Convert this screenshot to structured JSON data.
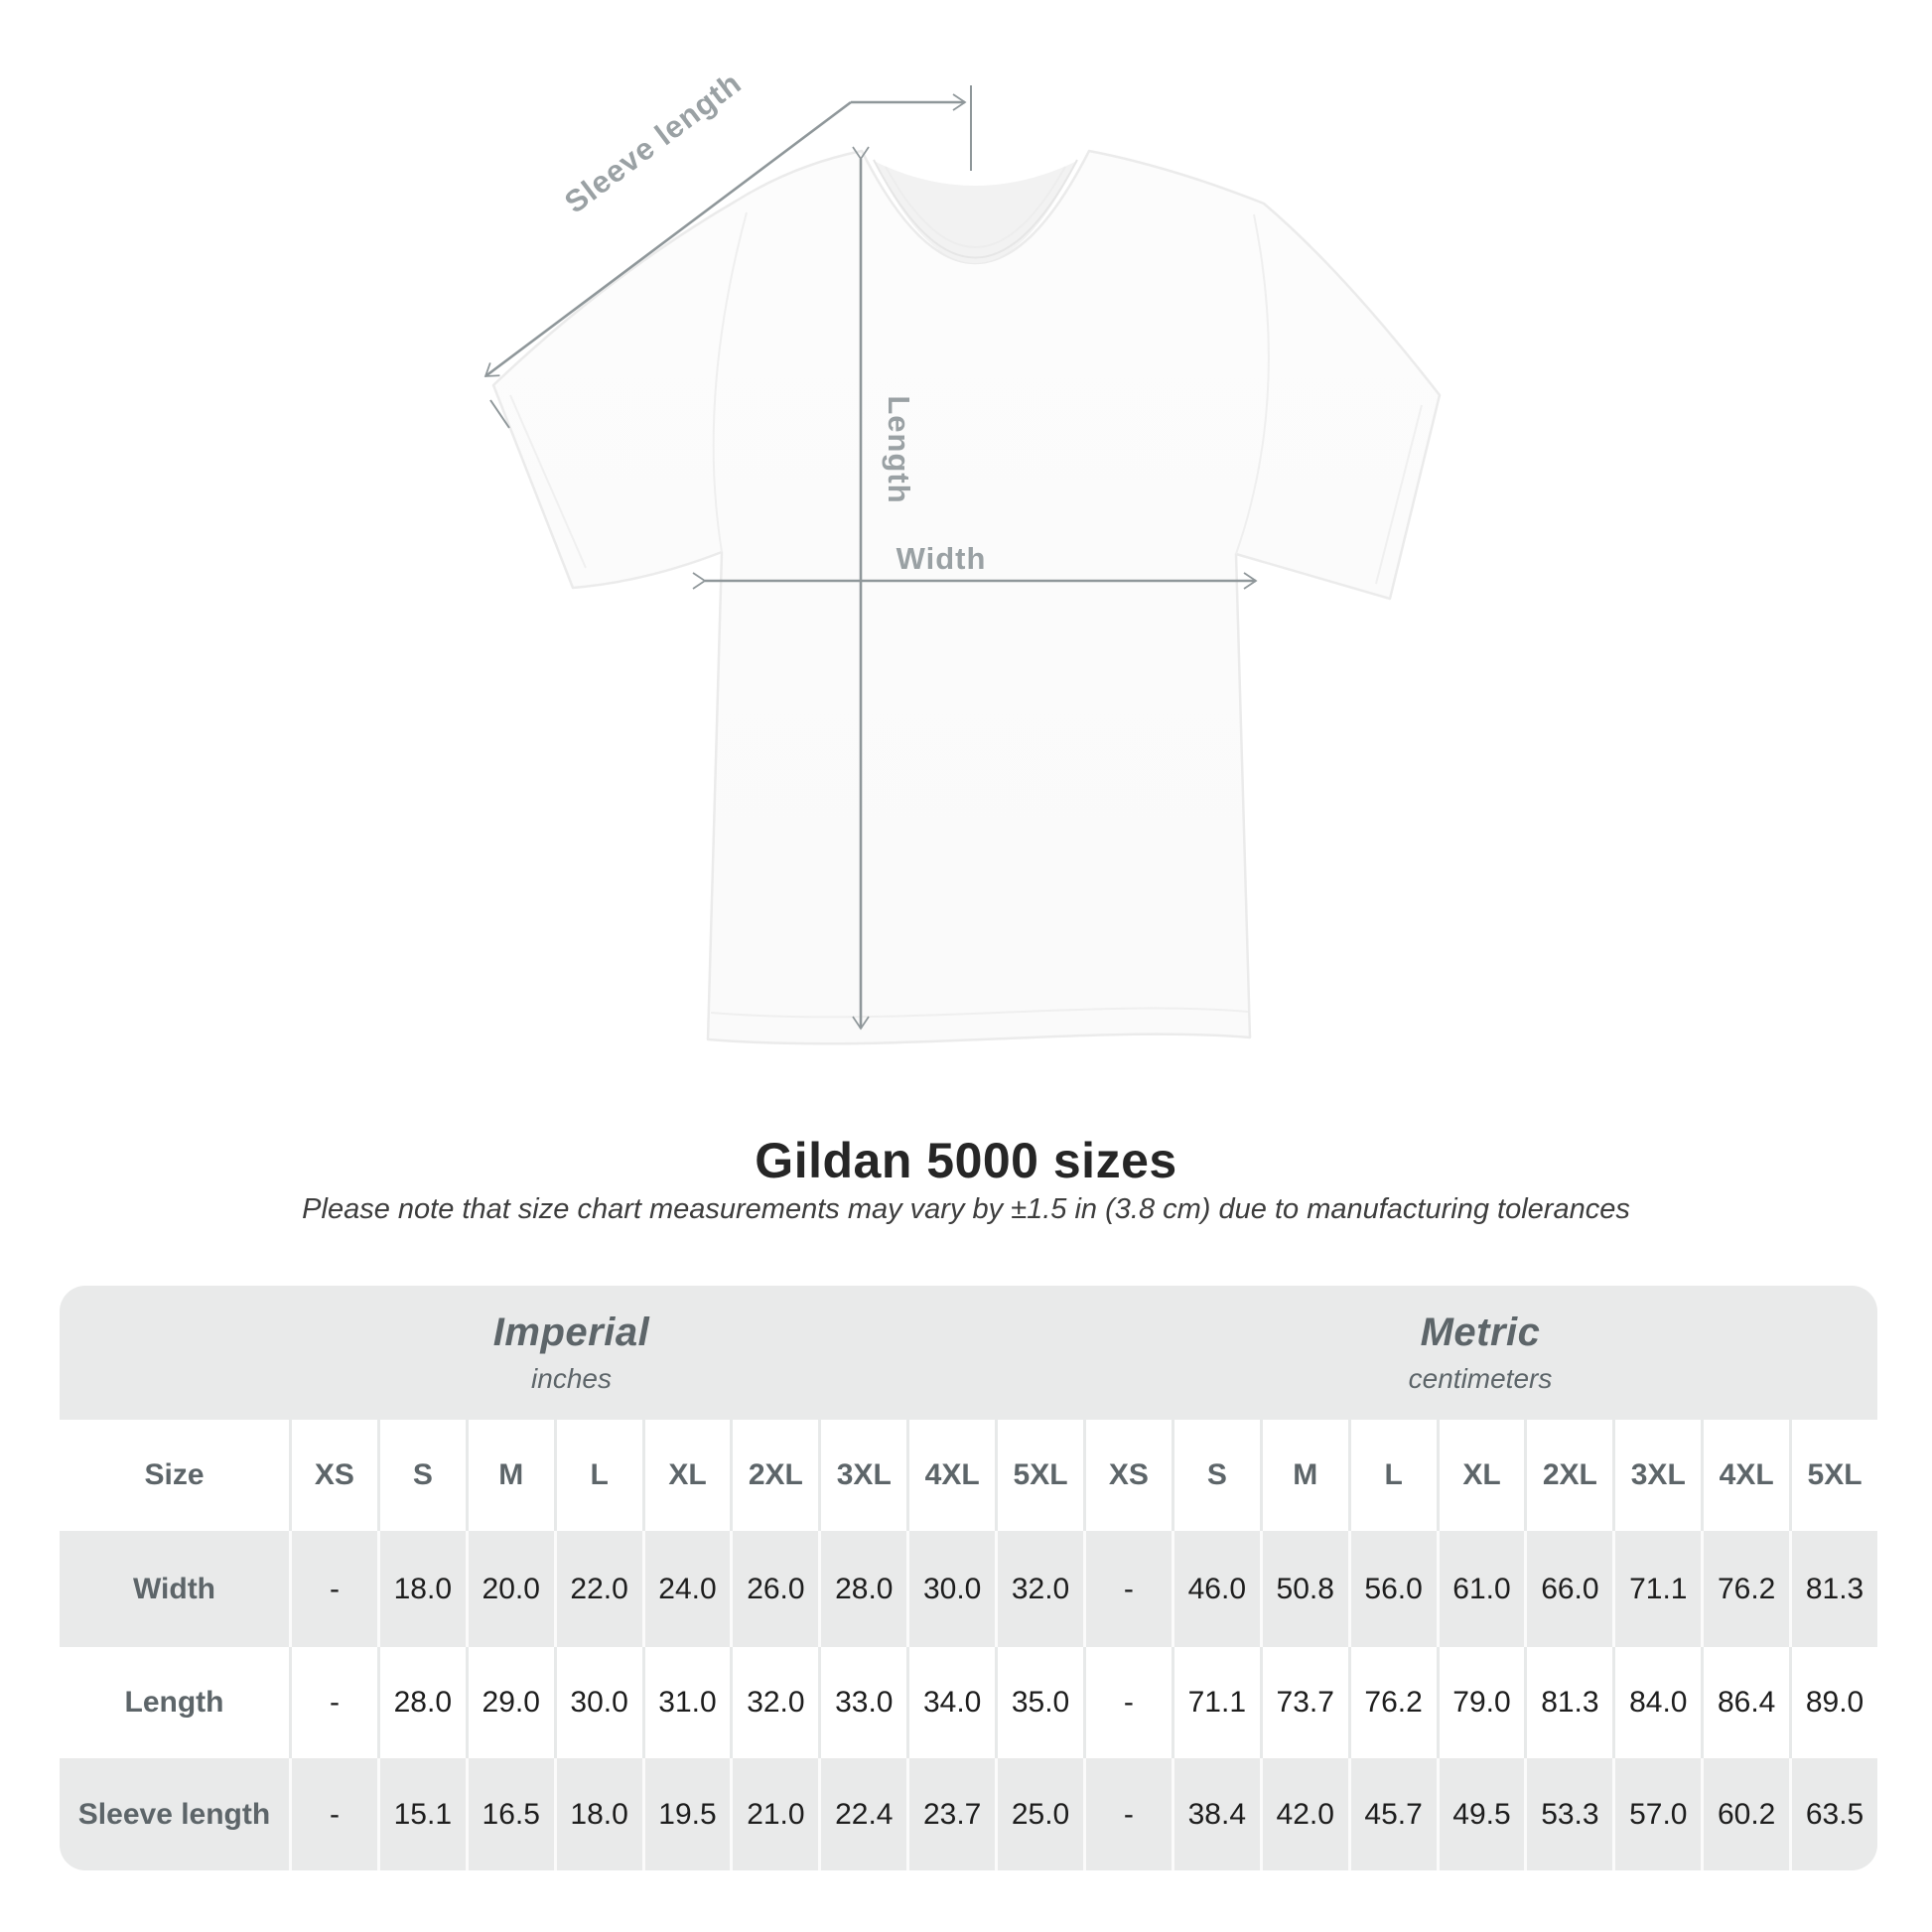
{
  "diagram": {
    "labels": {
      "sleeve_length": "Sleeve length",
      "length": "Length",
      "width": "Width"
    }
  },
  "title": "Gildan 5000 sizes",
  "subtitle": "Please note that size chart measurements may vary by ±1.5 in (3.8 cm) due to manufacturing tolerances",
  "table": {
    "unit_groups": [
      {
        "name": "Imperial",
        "unit": "inches"
      },
      {
        "name": "Metric",
        "unit": "centimeters"
      }
    ],
    "size_label": "Size",
    "sizes": [
      "XS",
      "S",
      "M",
      "L",
      "XL",
      "2XL",
      "3XL",
      "4XL",
      "5XL"
    ],
    "rows": [
      {
        "label": "Width",
        "imperial": [
          "-",
          "18.0",
          "20.0",
          "22.0",
          "24.0",
          "26.0",
          "28.0",
          "30.0",
          "32.0"
        ],
        "metric": [
          "-",
          "46.0",
          "50.8",
          "56.0",
          "61.0",
          "66.0",
          "71.1",
          "76.2",
          "81.3"
        ]
      },
      {
        "label": "Length",
        "imperial": [
          "-",
          "28.0",
          "29.0",
          "30.0",
          "31.0",
          "32.0",
          "33.0",
          "34.0",
          "35.0"
        ],
        "metric": [
          "-",
          "71.1",
          "73.7",
          "76.2",
          "79.0",
          "81.3",
          "84.0",
          "86.4",
          "89.0"
        ]
      },
      {
        "label": "Sleeve length",
        "imperial": [
          "-",
          "15.1",
          "16.5",
          "18.0",
          "19.5",
          "21.0",
          "22.4",
          "23.7",
          "25.0"
        ],
        "metric": [
          "-",
          "38.4",
          "42.0",
          "45.7",
          "49.5",
          "53.3",
          "57.0",
          "60.2",
          "63.5"
        ]
      }
    ]
  },
  "colors": {
    "stripe_gray": "#e9eaea",
    "header_text_gray": "#5d6569",
    "value_text": "#1d1d1d",
    "diagram_label_gray": "#9aa1a4",
    "arrow_gray": "#8f979a",
    "shirt_outline": "#ebebeb"
  }
}
